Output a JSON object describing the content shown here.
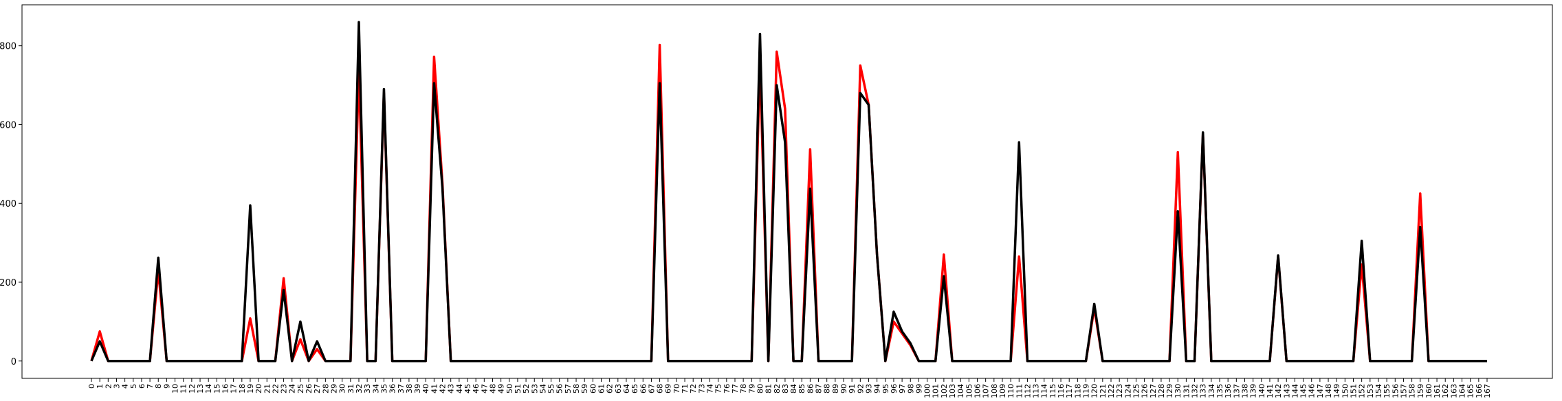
{
  "chart_data": {
    "type": "line",
    "categories": [
      "0",
      "1",
      "2",
      "3",
      "4",
      "5",
      "6",
      "7",
      "8",
      "9",
      "10",
      "11",
      "12",
      "13",
      "14",
      "15",
      "16",
      "17",
      "18",
      "19",
      "20",
      "21",
      "22",
      "23",
      "24",
      "25",
      "26",
      "27",
      "28",
      "29",
      "30",
      "31",
      "32",
      "33",
      "34",
      "35",
      "36",
      "37",
      "38",
      "39",
      "40",
      "41",
      "42",
      "43",
      "44",
      "45",
      "46",
      "47",
      "48",
      "49",
      "50",
      "51",
      "52",
      "53",
      "54",
      "55",
      "56",
      "57",
      "58",
      "59",
      "60",
      "61",
      "62",
      "63",
      "64",
      "65",
      "66",
      "67",
      "68",
      "69",
      "70",
      "71",
      "72",
      "73",
      "74",
      "75",
      "76",
      "77",
      "78",
      "79",
      "80",
      "81",
      "82",
      "83",
      "84",
      "85",
      "86",
      "87",
      "88",
      "89",
      "90",
      "91",
      "92",
      "93",
      "94",
      "95",
      "96",
      "97",
      "98",
      "99",
      "100",
      "101",
      "102",
      "103",
      "104",
      "105",
      "106",
      "107",
      "108",
      "109",
      "110",
      "111",
      "112",
      "113",
      "114",
      "115",
      "116",
      "117",
      "118",
      "119",
      "120",
      "121",
      "122",
      "123",
      "124",
      "125",
      "126",
      "127",
      "128",
      "129",
      "130",
      "131",
      "132",
      "133",
      "134",
      "135",
      "136",
      "137",
      "138",
      "139",
      "140",
      "141",
      "142",
      "143",
      "144",
      "145",
      "146",
      "147",
      "148",
      "149",
      "150",
      "151",
      "152",
      "153",
      "154",
      "155",
      "156",
      "157",
      "158",
      "159",
      "160",
      "161",
      "162",
      "163",
      "164",
      "165",
      "166",
      "167"
    ],
    "series": [
      {
        "color": "#ff0000",
        "values": [
          0,
          75,
          0,
          0,
          0,
          0,
          0,
          0,
          230,
          0,
          0,
          0,
          0,
          0,
          0,
          0,
          0,
          0,
          0,
          108,
          0,
          0,
          0,
          210,
          0,
          55,
          0,
          30,
          0,
          0,
          0,
          0,
          740,
          0,
          0,
          680,
          0,
          0,
          0,
          0,
          0,
          772,
          450,
          0,
          0,
          0,
          0,
          0,
          0,
          0,
          0,
          0,
          0,
          0,
          0,
          0,
          0,
          0,
          0,
          0,
          0,
          0,
          0,
          0,
          0,
          0,
          0,
          0,
          802,
          0,
          0,
          0,
          0,
          0,
          0,
          0,
          0,
          0,
          0,
          0,
          760,
          0,
          785,
          640,
          0,
          0,
          537,
          0,
          0,
          0,
          0,
          0,
          750,
          650,
          270,
          0,
          100,
          70,
          40,
          0,
          0,
          0,
          270,
          0,
          0,
          0,
          0,
          0,
          0,
          0,
          0,
          265,
          0,
          0,
          0,
          0,
          0,
          0,
          0,
          0,
          135,
          0,
          0,
          0,
          0,
          0,
          0,
          0,
          0,
          0,
          530,
          0,
          0,
          575,
          0,
          0,
          0,
          0,
          0,
          0,
          0,
          0,
          265,
          0,
          0,
          0,
          0,
          0,
          0,
          0,
          0,
          0,
          245,
          0,
          0,
          0,
          0,
          0,
          0,
          425,
          0,
          0,
          0,
          0,
          0,
          0,
          0,
          0
        ]
      },
      {
        "color": "#000000",
        "values": [
          0,
          50,
          0,
          0,
          0,
          0,
          0,
          0,
          262,
          0,
          0,
          0,
          0,
          0,
          0,
          0,
          0,
          0,
          0,
          395,
          0,
          0,
          0,
          180,
          0,
          100,
          0,
          50,
          0,
          0,
          0,
          0,
          860,
          0,
          0,
          690,
          0,
          0,
          0,
          0,
          0,
          705,
          440,
          0,
          0,
          0,
          0,
          0,
          0,
          0,
          0,
          0,
          0,
          0,
          0,
          0,
          0,
          0,
          0,
          0,
          0,
          0,
          0,
          0,
          0,
          0,
          0,
          0,
          705,
          0,
          0,
          0,
          0,
          0,
          0,
          0,
          0,
          0,
          0,
          0,
          830,
          0,
          700,
          555,
          0,
          0,
          437,
          0,
          0,
          0,
          0,
          0,
          680,
          650,
          270,
          0,
          125,
          75,
          45,
          0,
          0,
          0,
          215,
          0,
          0,
          0,
          0,
          0,
          0,
          0,
          0,
          555,
          0,
          0,
          0,
          0,
          0,
          0,
          0,
          0,
          145,
          0,
          0,
          0,
          0,
          0,
          0,
          0,
          0,
          0,
          380,
          0,
          0,
          580,
          0,
          0,
          0,
          0,
          0,
          0,
          0,
          0,
          268,
          0,
          0,
          0,
          0,
          0,
          0,
          0,
          0,
          0,
          305,
          0,
          0,
          0,
          0,
          0,
          0,
          340,
          0,
          0,
          0,
          0,
          0,
          0,
          0,
          0
        ]
      }
    ],
    "ylim": [
      -44,
      904
    ],
    "yticks": [
      0,
      200,
      400,
      600,
      800
    ],
    "grid": false
  }
}
